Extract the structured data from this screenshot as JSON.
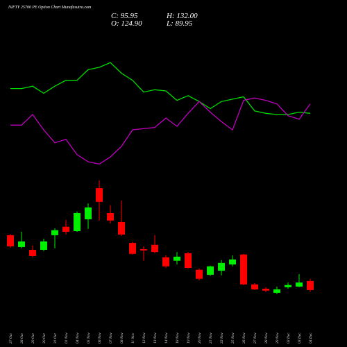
{
  "chart_data": {
    "type": "candlestick",
    "title": "NIFTY 25700  PE Option  Chart Munafasutra.com",
    "info": [
      "C: 95.95",
      "H: 132.00",
      "O: 124.90",
      "L: 89.95"
    ],
    "categories": [
      "27 Oct",
      "28 Oct",
      "29 Oct",
      "30 Oct",
      "31 Oct",
      "01 Nov",
      "04 Nov",
      "05 Nov",
      "06 Nov",
      "07 Nov",
      "08 Nov",
      "11 Nov",
      "12 Nov",
      "13 Nov",
      "14 Nov",
      "18 Nov",
      "19 Nov",
      "20 Nov",
      "21 Nov",
      "22 Nov",
      "25 Nov",
      "26 Nov",
      "27 Nov",
      "28 Nov",
      "29 Nov",
      "02 Dec",
      "03 Dec",
      "04 Dec"
    ],
    "open": [
      272,
      234,
      225,
      225,
      272,
      299,
      285,
      323,
      423,
      343,
      314,
      247,
      227,
      241,
      201,
      190,
      214,
      161,
      145,
      158,
      178,
      210,
      114,
      100,
      87,
      105,
      107,
      124.9
    ],
    "high": [
      276,
      283,
      239,
      261,
      294,
      321,
      348,
      374,
      448,
      368,
      383,
      250,
      236,
      272,
      207,
      218,
      218,
      165,
      174,
      192,
      207,
      212,
      118,
      105,
      107,
      120,
      147,
      132.0
    ],
    "low": [
      232,
      230,
      201,
      221,
      230,
      274,
      283,
      292,
      319,
      310,
      270,
      210,
      190,
      214,
      167,
      178,
      165,
      127,
      141,
      143,
      172,
      112,
      96,
      89,
      83,
      100,
      105,
      89.95
    ],
    "close": [
      236,
      252,
      205,
      252,
      288,
      283,
      343,
      361,
      379,
      319,
      274,
      212,
      223,
      218,
      172,
      203,
      167,
      132,
      172,
      183,
      194,
      114,
      98,
      94,
      98,
      112,
      120,
      95.95
    ],
    "up_color": "#00ee00",
    "down_color": "#ff0000",
    "ylim": [
      69,
      470
    ],
    "y2lim": [
      0,
      100
    ],
    "series": [
      {
        "color": "#00dd00",
        "axis": "y2",
        "values": [
          72,
          72,
          74,
          68,
          74,
          79,
          79,
          88,
          90,
          94,
          85,
          79,
          69,
          71,
          70,
          62,
          66,
          61,
          55,
          61,
          63,
          65,
          53,
          51,
          50,
          50,
          52,
          51
        ]
      },
      {
        "color": "#c000c0",
        "axis": "y2",
        "values": [
          41,
          41,
          50,
          37,
          26,
          29,
          16,
          10,
          8,
          14,
          23,
          37,
          38,
          39,
          47,
          40,
          51,
          61,
          52,
          44,
          37,
          62,
          64,
          62,
          59,
          49,
          46,
          59
        ]
      }
    ]
  }
}
